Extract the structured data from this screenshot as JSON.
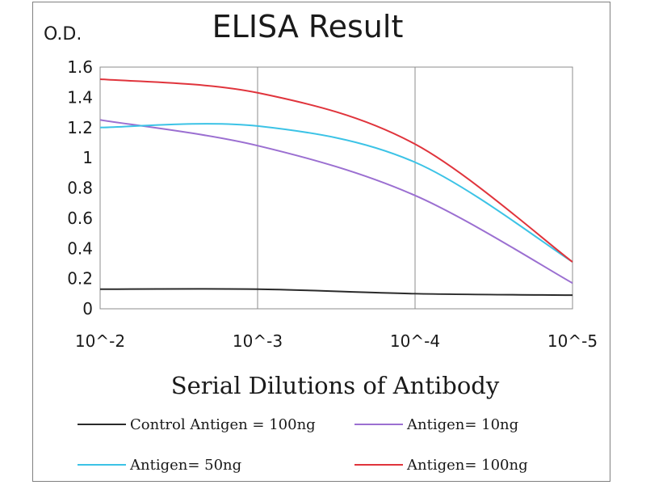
{
  "chart_data": {
    "type": "line",
    "title": "ELISA Result",
    "ylabel": "O.D.",
    "xlabel": "Serial Dilutions  of Antibody",
    "x": [
      "10^-2",
      "10^-3",
      "10^-4",
      "10^-5"
    ],
    "ylim": [
      0,
      1.6
    ],
    "yticks": [
      "0",
      "0.2",
      "0.4",
      "0.6",
      "0.8",
      "1",
      "1.2",
      "1.4",
      "1.6"
    ],
    "grid": "vertical",
    "legend": "bottom",
    "series": [
      {
        "name": "Control Antigen = 100ng",
        "color": "#2a2a2a",
        "values": [
          0.13,
          0.13,
          0.1,
          0.09
        ]
      },
      {
        "name": "Antigen= 10ng",
        "color": "#9b6fd1",
        "values": [
          1.25,
          1.08,
          0.75,
          0.17
        ]
      },
      {
        "name": "Antigen= 50ng",
        "color": "#3cc3e6",
        "values": [
          1.2,
          1.21,
          0.97,
          0.31
        ]
      },
      {
        "name": "Antigen= 100ng",
        "color": "#e0343c",
        "values": [
          1.52,
          1.43,
          1.09,
          0.31
        ]
      }
    ]
  }
}
